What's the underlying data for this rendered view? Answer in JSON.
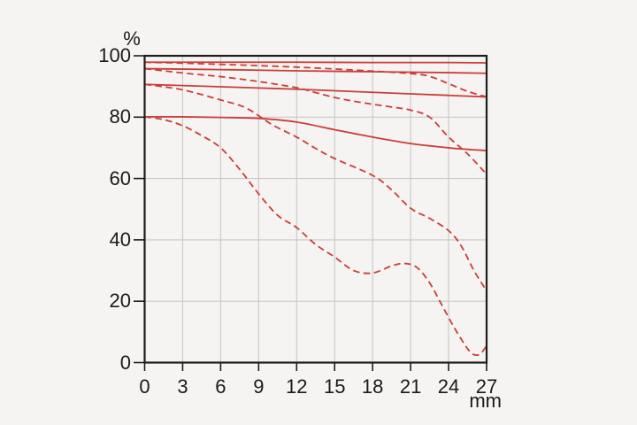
{
  "panel": {
    "background": "#f5f4f2"
  },
  "colors": {
    "curve": "#cc3d38",
    "frame": "#1d1d1b",
    "grid": "#c9c8c6",
    "text": "#1a1a1a"
  },
  "chart_data": {
    "type": "line",
    "title": "",
    "xlabel": "mm",
    "ylabel": "%",
    "xlim": [
      0,
      27
    ],
    "ylim": [
      0,
      100
    ],
    "x_ticks": [
      0,
      3,
      6,
      9,
      12,
      15,
      18,
      21,
      24,
      27
    ],
    "y_ticks": [
      100,
      80,
      60,
      40,
      20,
      0
    ],
    "grid": true,
    "legend": "none",
    "series": [
      {
        "name": "solid-1",
        "style": "solid",
        "points": [
          [
            0,
            97.9
          ],
          [
            6,
            97.9
          ],
          [
            12,
            97.9
          ],
          [
            18,
            97.8
          ],
          [
            24,
            97.8
          ],
          [
            27,
            97.7
          ]
        ]
      },
      {
        "name": "solid-2",
        "style": "solid",
        "points": [
          [
            0,
            95.8
          ],
          [
            6,
            95.5
          ],
          [
            12,
            95.1
          ],
          [
            18,
            94.8
          ],
          [
            24,
            94.5
          ],
          [
            27,
            94.3
          ]
        ]
      },
      {
        "name": "solid-3",
        "style": "solid",
        "points": [
          [
            0,
            90.7
          ],
          [
            3,
            90.3
          ],
          [
            6,
            89.9
          ],
          [
            9,
            89.5
          ],
          [
            12,
            89.1
          ],
          [
            15,
            88.6
          ],
          [
            18,
            88.1
          ],
          [
            21,
            87.6
          ],
          [
            24,
            87.1
          ],
          [
            27,
            86.6
          ]
        ]
      },
      {
        "name": "solid-4",
        "style": "solid",
        "points": [
          [
            0,
            80.1
          ],
          [
            3,
            80.1
          ],
          [
            6,
            79.9
          ],
          [
            9,
            79.6
          ],
          [
            12,
            78.4
          ],
          [
            15,
            75.9
          ],
          [
            18,
            73.5
          ],
          [
            21,
            71.4
          ],
          [
            24,
            70.0
          ],
          [
            25.5,
            69.5
          ],
          [
            27,
            69.1
          ]
        ]
      },
      {
        "name": "dashed-1",
        "style": "dashed",
        "points": [
          [
            0,
            97.9
          ],
          [
            3,
            97.6
          ],
          [
            6,
            97.2
          ],
          [
            9,
            96.8
          ],
          [
            12,
            96.3
          ],
          [
            15,
            95.7
          ],
          [
            18,
            95.0
          ],
          [
            21,
            94.2
          ],
          [
            22.5,
            93.3
          ],
          [
            24,
            90.9
          ],
          [
            25.5,
            88.4
          ],
          [
            27,
            86.6
          ]
        ]
      },
      {
        "name": "dashed-2",
        "style": "dashed",
        "points": [
          [
            0,
            95.8
          ],
          [
            3,
            94.4
          ],
          [
            6,
            93.2
          ],
          [
            9,
            91.6
          ],
          [
            12,
            89.6
          ],
          [
            13.5,
            88.0
          ],
          [
            15,
            86.4
          ],
          [
            16.5,
            85.2
          ],
          [
            18,
            84.2
          ],
          [
            19.5,
            83.3
          ],
          [
            21,
            82.3
          ],
          [
            22.5,
            80.0
          ],
          [
            24,
            73.5
          ],
          [
            25.5,
            68.0
          ],
          [
            27,
            61.4
          ]
        ]
      },
      {
        "name": "dashed-3",
        "style": "dashed",
        "points": [
          [
            0,
            90.7
          ],
          [
            3,
            88.9
          ],
          [
            6,
            85.6
          ],
          [
            8,
            83.0
          ],
          [
            10,
            77.7
          ],
          [
            12,
            73.5
          ],
          [
            13.5,
            69.8
          ],
          [
            15,
            66.5
          ],
          [
            18,
            61.0
          ],
          [
            19.5,
            56.3
          ],
          [
            21,
            50.3
          ],
          [
            22.5,
            47.0
          ],
          [
            24,
            43.0
          ],
          [
            25,
            38.0
          ],
          [
            26,
            30.0
          ],
          [
            27,
            23.4
          ]
        ]
      },
      {
        "name": "dashed-4",
        "style": "dashed",
        "points": [
          [
            0,
            80.1
          ],
          [
            1.5,
            79.2
          ],
          [
            3,
            77.2
          ],
          [
            4.5,
            74.0
          ],
          [
            6,
            70.0
          ],
          [
            7.5,
            63.0
          ],
          [
            9,
            55.0
          ],
          [
            10.5,
            48.0
          ],
          [
            12,
            44.0
          ],
          [
            13.5,
            38.5
          ],
          [
            15,
            34.4
          ],
          [
            16.5,
            30.0
          ],
          [
            18,
            29.2
          ],
          [
            19.5,
            31.5
          ],
          [
            20.5,
            32.3
          ],
          [
            21.5,
            31.0
          ],
          [
            22.5,
            26.0
          ],
          [
            23.5,
            18.5
          ],
          [
            24.5,
            11.0
          ],
          [
            25.5,
            4.5
          ],
          [
            26,
            2.6
          ],
          [
            26.5,
            2.8
          ],
          [
            27,
            5.5
          ]
        ]
      }
    ]
  }
}
